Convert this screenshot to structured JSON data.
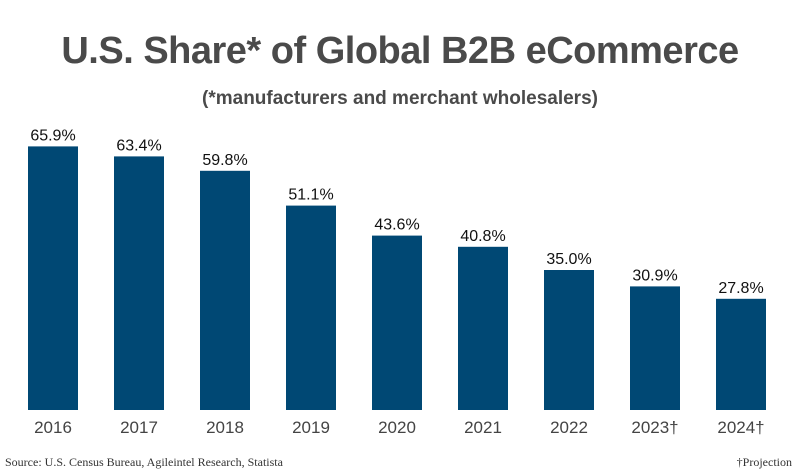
{
  "chart_data": {
    "type": "bar",
    "title": "U.S. Share* of Global B2B eCommerce",
    "subtitle": "(*manufacturers and merchant wholesalers)",
    "categories": [
      "2016",
      "2017",
      "2018",
      "2019",
      "2020",
      "2021",
      "2022",
      "2023†",
      "2024†"
    ],
    "values": [
      65.9,
      63.4,
      59.8,
      51.1,
      43.6,
      40.8,
      35.0,
      30.9,
      27.8
    ],
    "data_labels": [
      "65.9%",
      "63.4%",
      "59.8%",
      "51.1%",
      "43.6%",
      "40.8%",
      "35.0%",
      "30.9%",
      "27.8%"
    ],
    "xlabel": "",
    "ylabel": "",
    "ylim": [
      0,
      100
    ],
    "grid": false,
    "legend": "none",
    "bar_color": "#004874",
    "annotations": [
      "†Projection"
    ]
  },
  "footer": {
    "source": "Source: U.S. Census Bureau, Agileintel Research, Statista",
    "note": "†Projection"
  }
}
